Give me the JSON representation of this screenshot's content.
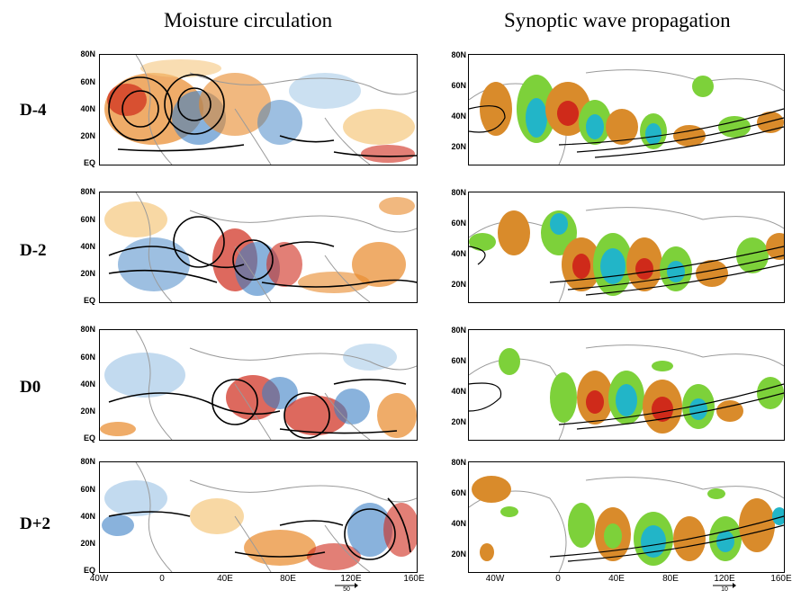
{
  "titles": {
    "left": "Moisture circulation",
    "right": "Synoptic wave propagation"
  },
  "rows": [
    {
      "label": "D-4"
    },
    {
      "label": "D-2"
    },
    {
      "label": "D0"
    },
    {
      "label": "D+2"
    }
  ],
  "left_lat_labels": [
    "80N",
    "60N",
    "40N",
    "20N",
    "EQ"
  ],
  "right_lat_labels": [
    "80N",
    "60N",
    "40N",
    "20N"
  ],
  "left_lon_labels": [
    "40W",
    "0",
    "40E",
    "80E",
    "120E",
    "160E"
  ],
  "right_lon_labels": [
    "40W",
    "0",
    "40E",
    "80E",
    "120E",
    "160E"
  ],
  "left_vector_scale": "50",
  "right_vector_scale": "10",
  "colors": {
    "dry_blue": "#3b7fc4",
    "light_blue": "#a8cbe8",
    "wet_orange": "#e8892a",
    "light_orange": "#f5c77e",
    "red": "#cf2a1a",
    "green": "#7dd13a",
    "cyan": "#22b5c8",
    "dark_orange": "#d98b2b",
    "coast": "#9a9a9a"
  }
}
